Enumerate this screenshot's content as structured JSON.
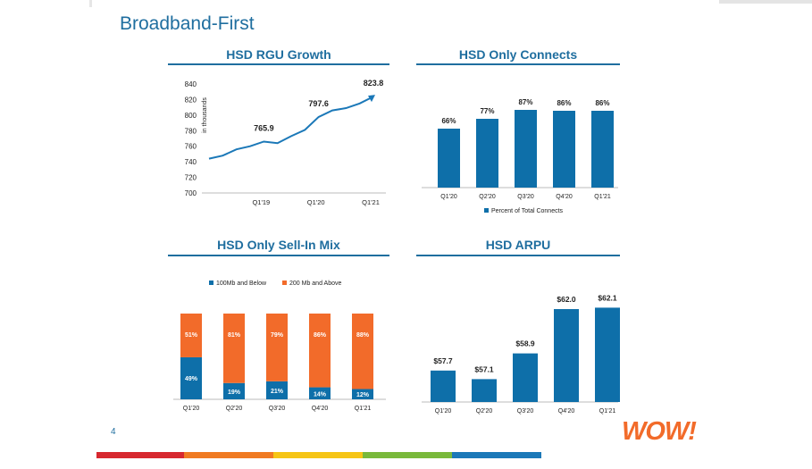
{
  "slide": {
    "title": "Broadband-First",
    "page_number": "4",
    "logo_text": "WOW!"
  },
  "colors": {
    "brand_blue": "#1f6e9f",
    "bar_blue": "#0e6fa9",
    "line_blue": "#1b78b8",
    "orange": "#f26b2a",
    "stripe_red": "#d7282f",
    "stripe_orange": "#f07a22",
    "stripe_yellow": "#f6c515",
    "stripe_green": "#79b93b",
    "stripe_blue": "#1b78b8",
    "stripe_gray": "#d9d9d9"
  },
  "chart_data": [
    {
      "id": "rgu",
      "type": "line",
      "title": "HSD RGU Growth",
      "ylabel": "in thousands",
      "ylim": [
        700,
        840
      ],
      "yticks": [
        "700",
        "720",
        "740",
        "760",
        "780",
        "800",
        "820",
        "840"
      ],
      "xtick_labels": [
        {
          "label": "Q1'19",
          "index": 4
        },
        {
          "label": "Q1'20",
          "index": 8
        },
        {
          "label": "Q1'21",
          "index": 12
        }
      ],
      "values": [
        744,
        748,
        756,
        760,
        766,
        764,
        773,
        781,
        797.6,
        806,
        809,
        815,
        823.8
      ],
      "data_labels": [
        {
          "index": 4,
          "label": "765.9"
        },
        {
          "index": 8,
          "label": "797.6"
        },
        {
          "index": 12,
          "label": "823.8"
        }
      ],
      "grid": false
    },
    {
      "id": "connects",
      "type": "bar",
      "title": "HSD Only Connects",
      "categories": [
        "Q1'20",
        "Q2'20",
        "Q3'20",
        "Q4'20",
        "Q1'21"
      ],
      "values": [
        66,
        77,
        87,
        86,
        86
      ],
      "labels": [
        "66%",
        "77%",
        "87%",
        "86%",
        "86%"
      ],
      "ylim": [
        0,
        100
      ],
      "legend": "Percent of Total Connects",
      "legend_position": "bottom"
    },
    {
      "id": "sellin",
      "type": "bar",
      "stacked": true,
      "title": "HSD Only Sell-In Mix",
      "categories": [
        "Q1'20",
        "Q2'20",
        "Q3'20",
        "Q4'20",
        "Q1'21"
      ],
      "series": [
        {
          "name": "100Mb and Below",
          "values": [
            49,
            19,
            21,
            14,
            12
          ],
          "labels": [
            "49%",
            "19%",
            "21%",
            "14%",
            "12%"
          ]
        },
        {
          "name": "200 Mb and Above",
          "values": [
            51,
            81,
            79,
            86,
            88
          ],
          "labels": [
            "51%",
            "81%",
            "79%",
            "86%",
            "88%"
          ]
        }
      ],
      "ylim": [
        0,
        100
      ],
      "legend_position": "top"
    },
    {
      "id": "arpu",
      "type": "bar",
      "title": "HSD ARPU",
      "categories": [
        "Q1'20",
        "Q2'20",
        "Q3'20",
        "Q4'20",
        "Q1'21"
      ],
      "values": [
        57.7,
        57.1,
        58.9,
        62.0,
        62.1
      ],
      "labels": [
        "$57.7",
        "$57.1",
        "$58.9",
        "$62.0",
        "$62.1"
      ],
      "ylim": [
        55.5,
        62.5
      ]
    }
  ]
}
